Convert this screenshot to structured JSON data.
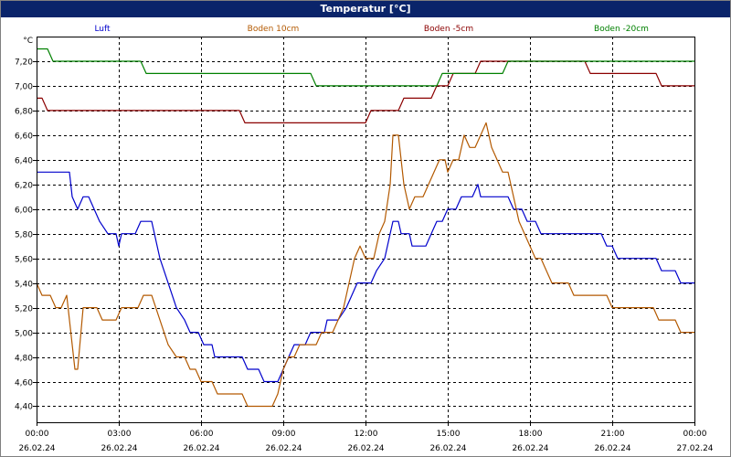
{
  "window": {
    "title": "Temperatur [°C]"
  },
  "chart_data": {
    "type": "line",
    "title": "Temperatur [°C]",
    "ylabel": "°C",
    "ylim": [
      4.27,
      7.4
    ],
    "yticks": [
      "4,40",
      "4,60",
      "4,80",
      "5,00",
      "5,20",
      "5,40",
      "5,60",
      "5,80",
      "6,00",
      "6,20",
      "6,40",
      "6,60",
      "6,80",
      "7,00",
      "7,20"
    ],
    "ytick_values": [
      4.4,
      4.6,
      4.8,
      5.0,
      5.2,
      5.4,
      5.6,
      5.8,
      6.0,
      6.2,
      6.4,
      6.6,
      6.8,
      7.0,
      7.2
    ],
    "xlim": [
      0,
      24
    ],
    "xticks": [
      {
        "time": "00:00",
        "date": "26.02.24"
      },
      {
        "time": "03:00",
        "date": "26.02.24"
      },
      {
        "time": "06:00",
        "date": "26.02.24"
      },
      {
        "time": "09:00",
        "date": "26.02.24"
      },
      {
        "time": "12:00",
        "date": "26.02.24"
      },
      {
        "time": "15:00",
        "date": "26.02.24"
      },
      {
        "time": "18:00",
        "date": "26.02.24"
      },
      {
        "time": "21:00",
        "date": "26.02.24"
      },
      {
        "time": "00:00",
        "date": "27.02.24"
      }
    ],
    "grid": true,
    "legend_position": "top",
    "series": [
      {
        "name": "Luft",
        "color": "#0000cc",
        "points": [
          [
            0,
            6.3
          ],
          [
            1.2,
            6.3
          ],
          [
            1.3,
            6.1
          ],
          [
            1.5,
            6.0
          ],
          [
            1.7,
            6.1
          ],
          [
            1.9,
            6.1
          ],
          [
            2.1,
            6.0
          ],
          [
            2.3,
            5.9
          ],
          [
            2.6,
            5.8
          ],
          [
            2.9,
            5.8
          ],
          [
            3.0,
            5.7
          ],
          [
            3.1,
            5.8
          ],
          [
            3.6,
            5.8
          ],
          [
            3.8,
            5.9
          ],
          [
            4.2,
            5.9
          ],
          [
            4.3,
            5.8
          ],
          [
            4.5,
            5.6
          ],
          [
            4.8,
            5.4
          ],
          [
            5.1,
            5.2
          ],
          [
            5.4,
            5.1
          ],
          [
            5.6,
            5.0
          ],
          [
            5.9,
            5.0
          ],
          [
            6.1,
            4.9
          ],
          [
            6.4,
            4.9
          ],
          [
            6.5,
            4.8
          ],
          [
            7.5,
            4.8
          ],
          [
            7.7,
            4.7
          ],
          [
            8.1,
            4.7
          ],
          [
            8.3,
            4.6
          ],
          [
            8.8,
            4.6
          ],
          [
            9.0,
            4.7
          ],
          [
            9.2,
            4.8
          ],
          [
            9.4,
            4.9
          ],
          [
            9.8,
            4.9
          ],
          [
            10.0,
            5.0
          ],
          [
            10.5,
            5.0
          ],
          [
            10.6,
            5.1
          ],
          [
            11.0,
            5.1
          ],
          [
            11.3,
            5.2
          ],
          [
            11.5,
            5.3
          ],
          [
            11.7,
            5.4
          ],
          [
            12.2,
            5.4
          ],
          [
            12.4,
            5.5
          ],
          [
            12.7,
            5.6
          ],
          [
            13.0,
            5.9
          ],
          [
            13.2,
            5.9
          ],
          [
            13.3,
            5.8
          ],
          [
            13.6,
            5.8
          ],
          [
            13.7,
            5.7
          ],
          [
            14.2,
            5.7
          ],
          [
            14.4,
            5.8
          ],
          [
            14.6,
            5.9
          ],
          [
            14.8,
            5.9
          ],
          [
            15.0,
            6.0
          ],
          [
            15.3,
            6.0
          ],
          [
            15.5,
            6.1
          ],
          [
            15.9,
            6.1
          ],
          [
            16.1,
            6.2
          ],
          [
            16.2,
            6.1
          ],
          [
            17.2,
            6.1
          ],
          [
            17.4,
            6.0
          ],
          [
            17.7,
            6.0
          ],
          [
            17.9,
            5.9
          ],
          [
            18.2,
            5.9
          ],
          [
            18.4,
            5.8
          ],
          [
            20.6,
            5.8
          ],
          [
            20.8,
            5.7
          ],
          [
            21.0,
            5.7
          ],
          [
            21.2,
            5.6
          ],
          [
            22.6,
            5.6
          ],
          [
            22.8,
            5.5
          ],
          [
            23.3,
            5.5
          ],
          [
            23.5,
            5.4
          ],
          [
            24,
            5.4
          ]
        ]
      },
      {
        "name": "Boden 10cm",
        "color": "#b35900",
        "points": [
          [
            0,
            5.4
          ],
          [
            0.2,
            5.3
          ],
          [
            0.5,
            5.3
          ],
          [
            0.7,
            5.2
          ],
          [
            0.9,
            5.2
          ],
          [
            1.1,
            5.3
          ],
          [
            1.3,
            4.9
          ],
          [
            1.4,
            4.7
          ],
          [
            1.5,
            4.7
          ],
          [
            1.7,
            5.2
          ],
          [
            2.2,
            5.2
          ],
          [
            2.4,
            5.1
          ],
          [
            2.9,
            5.1
          ],
          [
            3.1,
            5.2
          ],
          [
            3.7,
            5.2
          ],
          [
            3.9,
            5.3
          ],
          [
            4.2,
            5.3
          ],
          [
            4.5,
            5.1
          ],
          [
            4.8,
            4.9
          ],
          [
            5.1,
            4.8
          ],
          [
            5.4,
            4.8
          ],
          [
            5.6,
            4.7
          ],
          [
            5.8,
            4.7
          ],
          [
            6.0,
            4.6
          ],
          [
            6.4,
            4.6
          ],
          [
            6.6,
            4.5
          ],
          [
            7.5,
            4.5
          ],
          [
            7.7,
            4.4
          ],
          [
            8.6,
            4.4
          ],
          [
            8.8,
            4.5
          ],
          [
            9.0,
            4.7
          ],
          [
            9.2,
            4.8
          ],
          [
            9.4,
            4.8
          ],
          [
            9.6,
            4.9
          ],
          [
            10.2,
            4.9
          ],
          [
            10.4,
            5.0
          ],
          [
            10.8,
            5.0
          ],
          [
            11.0,
            5.1
          ],
          [
            11.2,
            5.2
          ],
          [
            11.4,
            5.4
          ],
          [
            11.6,
            5.6
          ],
          [
            11.8,
            5.7
          ],
          [
            12.0,
            5.6
          ],
          [
            12.3,
            5.6
          ],
          [
            12.5,
            5.8
          ],
          [
            12.7,
            5.9
          ],
          [
            12.9,
            6.2
          ],
          [
            13.0,
            6.6
          ],
          [
            13.2,
            6.6
          ],
          [
            13.4,
            6.2
          ],
          [
            13.6,
            6.0
          ],
          [
            13.8,
            6.1
          ],
          [
            14.1,
            6.1
          ],
          [
            14.3,
            6.2
          ],
          [
            14.5,
            6.3
          ],
          [
            14.7,
            6.4
          ],
          [
            14.9,
            6.4
          ],
          [
            15.0,
            6.3
          ],
          [
            15.2,
            6.4
          ],
          [
            15.4,
            6.4
          ],
          [
            15.6,
            6.6
          ],
          [
            15.8,
            6.5
          ],
          [
            16.0,
            6.5
          ],
          [
            16.2,
            6.6
          ],
          [
            16.4,
            6.7
          ],
          [
            16.6,
            6.5
          ],
          [
            16.8,
            6.4
          ],
          [
            17.0,
            6.3
          ],
          [
            17.2,
            6.3
          ],
          [
            17.4,
            6.1
          ],
          [
            17.6,
            5.9
          ],
          [
            17.8,
            5.8
          ],
          [
            18.0,
            5.7
          ],
          [
            18.2,
            5.6
          ],
          [
            18.4,
            5.6
          ],
          [
            18.6,
            5.5
          ],
          [
            18.8,
            5.4
          ],
          [
            19.4,
            5.4
          ],
          [
            19.6,
            5.3
          ],
          [
            20.8,
            5.3
          ],
          [
            21.0,
            5.2
          ],
          [
            22.5,
            5.2
          ],
          [
            22.7,
            5.1
          ],
          [
            23.3,
            5.1
          ],
          [
            23.5,
            5.0
          ],
          [
            24,
            5.0
          ]
        ]
      },
      {
        "name": "Boden -5cm",
        "color": "#8b0000",
        "points": [
          [
            0,
            6.9
          ],
          [
            0.2,
            6.9
          ],
          [
            0.4,
            6.8
          ],
          [
            7.4,
            6.8
          ],
          [
            7.6,
            6.7
          ],
          [
            12.0,
            6.7
          ],
          [
            12.2,
            6.8
          ],
          [
            13.2,
            6.8
          ],
          [
            13.4,
            6.9
          ],
          [
            14.4,
            6.9
          ],
          [
            14.6,
            7.0
          ],
          [
            15.0,
            7.0
          ],
          [
            15.2,
            7.1
          ],
          [
            16.0,
            7.1
          ],
          [
            16.2,
            7.2
          ],
          [
            20.0,
            7.2
          ],
          [
            20.2,
            7.1
          ],
          [
            22.6,
            7.1
          ],
          [
            22.8,
            7.0
          ],
          [
            24,
            7.0
          ]
        ]
      },
      {
        "name": "Boden -20cm",
        "color": "#008000",
        "points": [
          [
            0,
            7.3
          ],
          [
            0.4,
            7.3
          ],
          [
            0.6,
            7.2
          ],
          [
            3.8,
            7.2
          ],
          [
            4.0,
            7.1
          ],
          [
            10.0,
            7.1
          ],
          [
            10.2,
            7.0
          ],
          [
            14.6,
            7.0
          ],
          [
            14.8,
            7.1
          ],
          [
            17.0,
            7.1
          ],
          [
            17.2,
            7.2
          ],
          [
            24,
            7.2
          ]
        ]
      }
    ]
  }
}
